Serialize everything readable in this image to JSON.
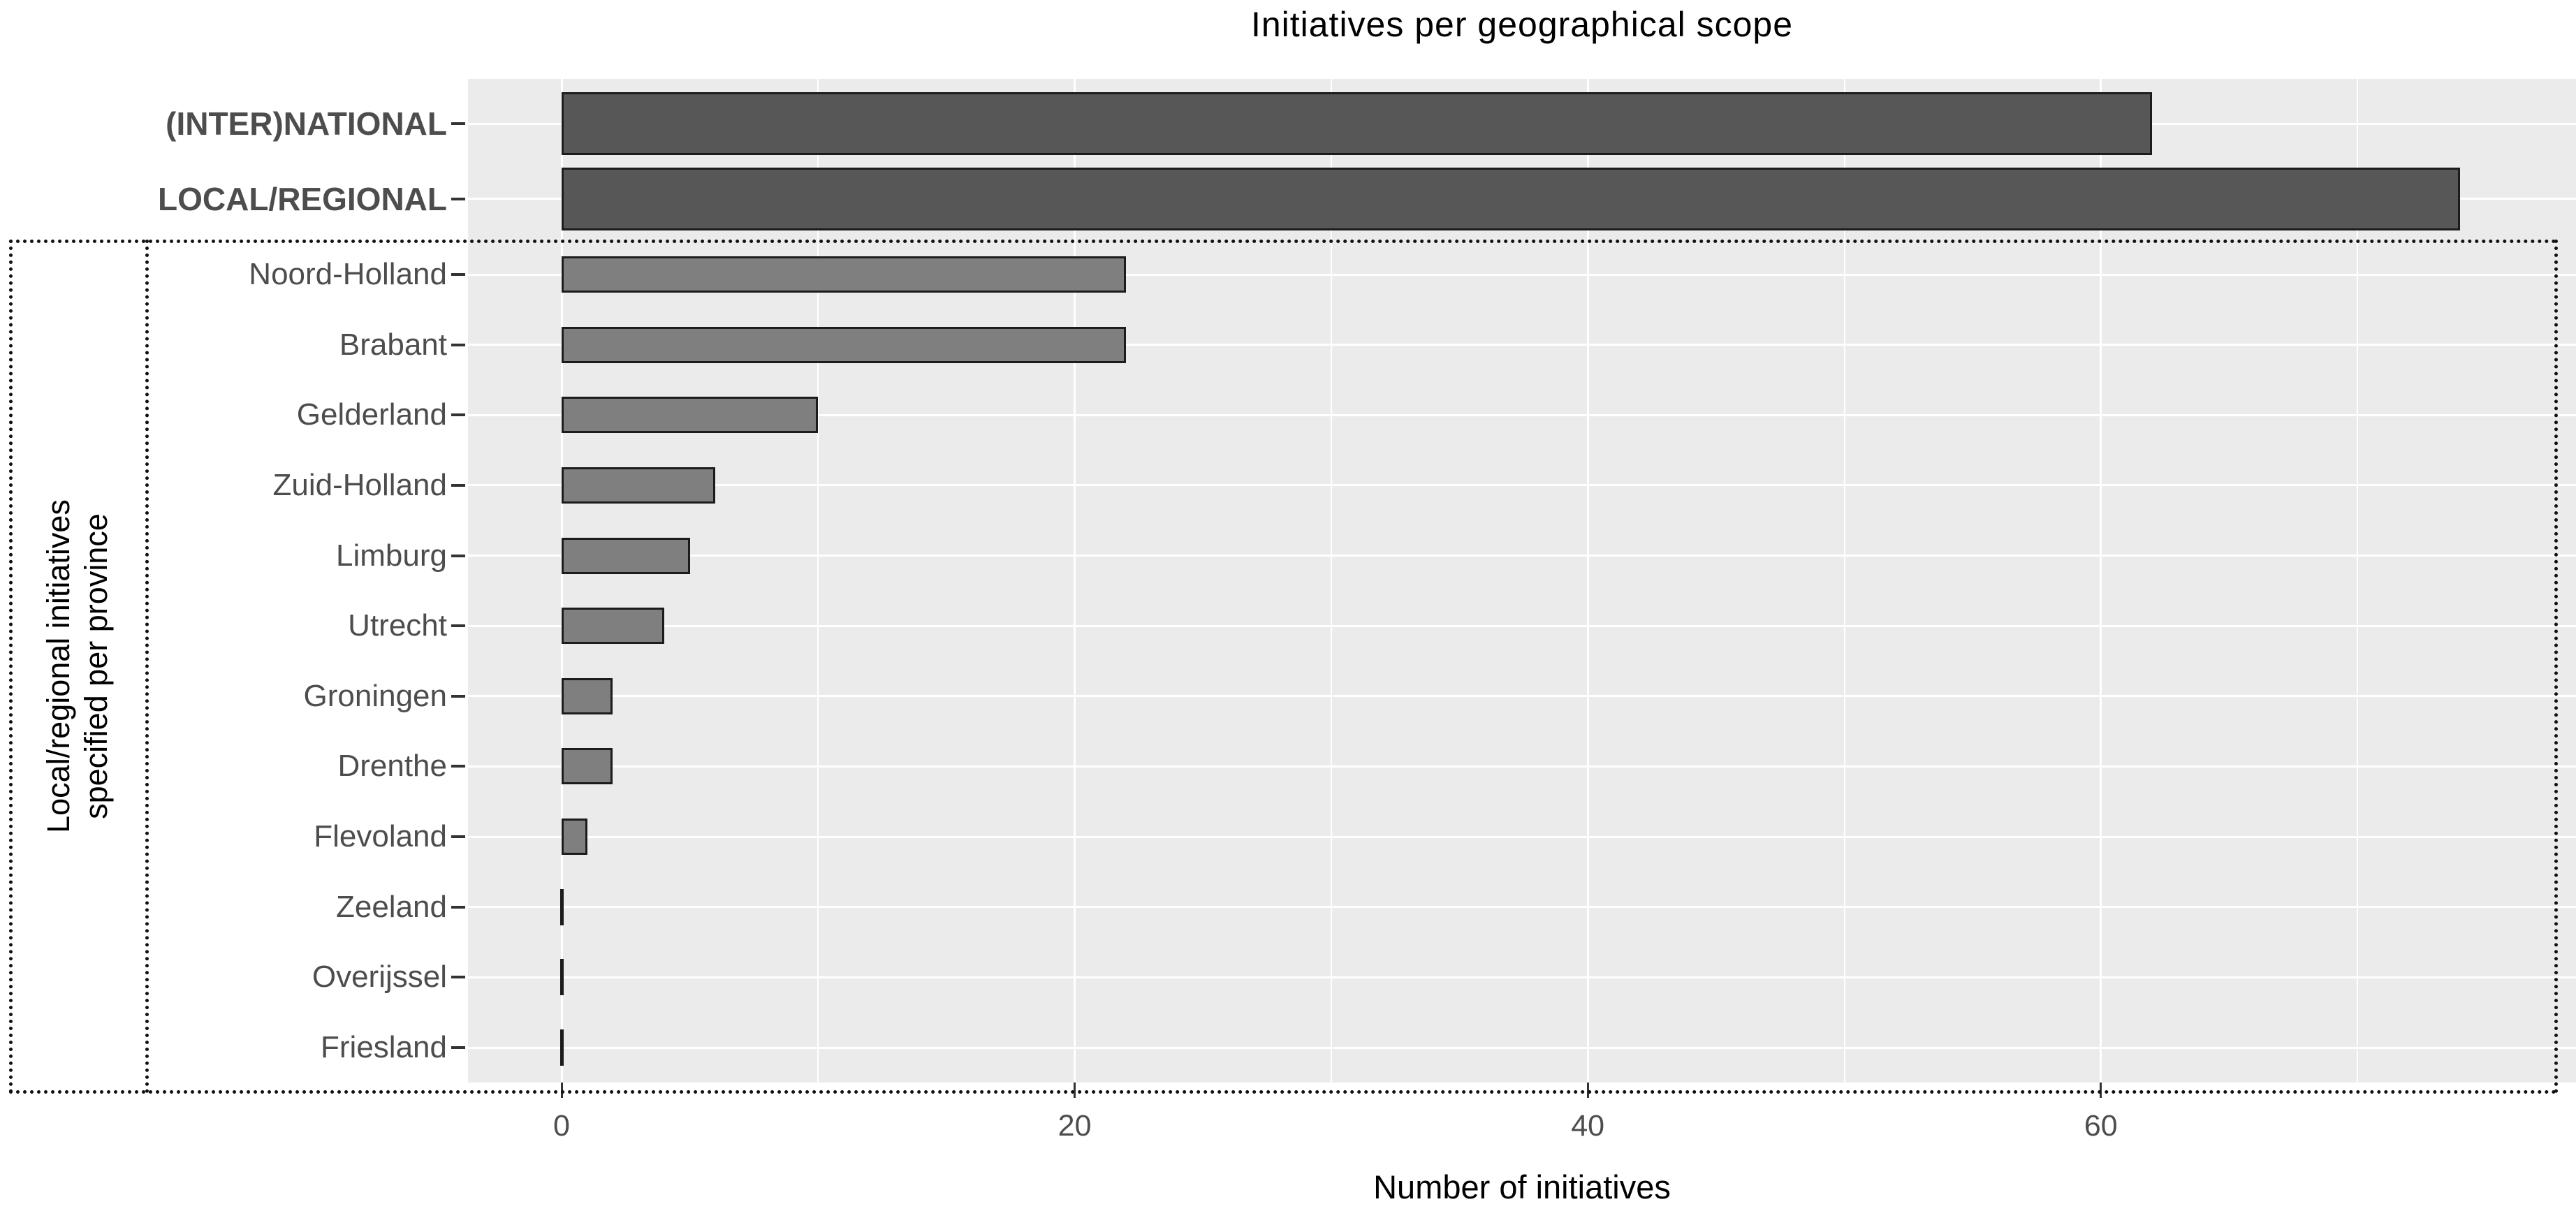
{
  "chart_data": {
    "type": "bar",
    "orientation": "horizontal",
    "title": "Initiatives per geographical scope",
    "xlabel": "Number of initiatives",
    "ylabel_line1": "Local/regional initiatives",
    "ylabel_line2": "specified per province",
    "x_major_ticks": [
      0,
      20,
      40,
      60
    ],
    "x_tick_labels": [
      "0",
      "20",
      "40",
      "60"
    ],
    "x_minor_ticks": [
      10,
      30,
      50,
      70
    ],
    "xlim": [
      -3.6,
      78.5
    ],
    "grid": "on",
    "legend": "none",
    "groups": [
      {
        "name": "geographical-scope",
        "categories": [
          "(INTER)NATIONAL",
          "LOCAL/REGIONAL"
        ],
        "values": [
          62,
          74
        ],
        "bold_labels": true
      },
      {
        "name": "provinces",
        "categories": [
          "Noord-Holland",
          "Brabant",
          "Gelderland",
          "Zuid-Holland",
          "Limburg",
          "Utrecht",
          "Groningen",
          "Drenthe",
          "Flevoland",
          "Zeeland",
          "Overijssel",
          "Friesland"
        ],
        "values": [
          22,
          22,
          10,
          6,
          5,
          4,
          2,
          2,
          1,
          0,
          0,
          0
        ],
        "bold_labels": false
      }
    ],
    "colors": {
      "panel_bg": "#ebebeb",
      "gridline": "#ffffff",
      "bar_dark": "#575757",
      "bar_light": "#7f7f7f",
      "bar_outline": "#1c1c1c",
      "axis_text": "#4d4d4d",
      "tick_mark": "#333333",
      "dotted_box": "#111111"
    }
  }
}
